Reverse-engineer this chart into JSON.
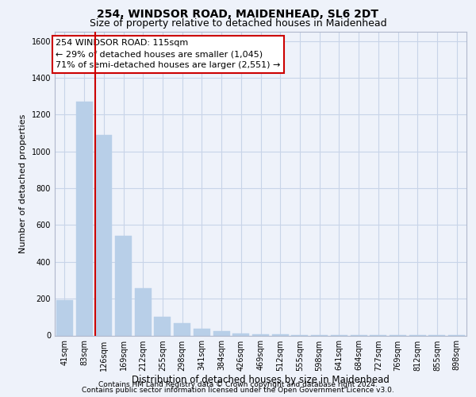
{
  "title_line1": "254, WINDSOR ROAD, MAIDENHEAD, SL6 2DT",
  "title_line2": "Size of property relative to detached houses in Maidenhead",
  "xlabel": "Distribution of detached houses by size in Maidenhead",
  "ylabel": "Number of detached properties",
  "footer_line1": "Contains HM Land Registry data © Crown copyright and database right 2024.",
  "footer_line2": "Contains public sector information licensed under the Open Government Licence v3.0.",
  "annotation_line1": "254 WINDSOR ROAD: 115sqm",
  "annotation_line2": "← 29% of detached houses are smaller (1,045)",
  "annotation_line3": "71% of semi-detached houses are larger (2,551) →",
  "categories": [
    "41sqm",
    "83sqm",
    "126sqm",
    "169sqm",
    "212sqm",
    "255sqm",
    "298sqm",
    "341sqm",
    "384sqm",
    "426sqm",
    "469sqm",
    "512sqm",
    "555sqm",
    "598sqm",
    "641sqm",
    "684sqm",
    "727sqm",
    "769sqm",
    "812sqm",
    "855sqm",
    "898sqm"
  ],
  "values": [
    193,
    1270,
    1090,
    540,
    255,
    100,
    65,
    35,
    22,
    12,
    8,
    5,
    4,
    3,
    2,
    2,
    1,
    1,
    1,
    1,
    1
  ],
  "bar_color": "#b8cfe8",
  "vline_color": "#cc0000",
  "vline_x": 1.57,
  "grid_color": "#c8d4e8",
  "background_color": "#eef2fa",
  "plot_bg_color": "#eef2fa",
  "ylim": [
    0,
    1650
  ],
  "yticks": [
    0,
    200,
    400,
    600,
    800,
    1000,
    1200,
    1400,
    1600
  ],
  "annotation_box_color": "#ffffff",
  "annotation_border_color": "#cc0000",
  "annotation_fontsize": 8,
  "title_fontsize1": 10,
  "title_fontsize2": 9,
  "xlabel_fontsize": 8.5,
  "ylabel_fontsize": 8,
  "tick_fontsize": 7,
  "footer_fontsize": 6.5
}
